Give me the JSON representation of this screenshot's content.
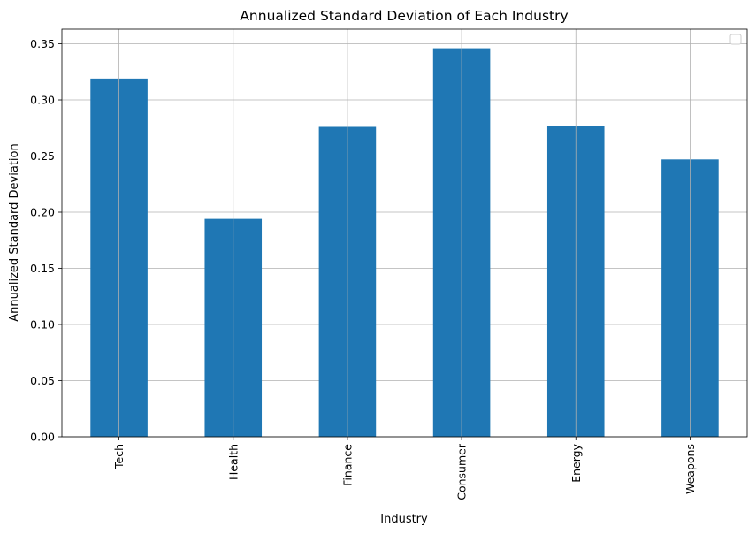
{
  "chart_data": {
    "type": "bar",
    "title": "Annualized Standard Deviation of Each Industry",
    "xlabel": "Industry",
    "ylabel": "Annualized Standard Deviation",
    "categories": [
      "Tech",
      "Health",
      "Finance",
      "Consumer",
      "Energy",
      "Weapons"
    ],
    "values": [
      0.319,
      0.194,
      0.276,
      0.346,
      0.277,
      0.247
    ],
    "ylim": [
      0,
      0.363
    ],
    "yticks": [
      0.0,
      0.05,
      0.1,
      0.15,
      0.2,
      0.25,
      0.3,
      0.35
    ],
    "ytick_labels": [
      "0.00",
      "0.05",
      "0.10",
      "0.15",
      "0.20",
      "0.25",
      "0.30",
      "0.35"
    ],
    "grid": true,
    "legend": {
      "placement": "top-right",
      "entries": []
    },
    "colors": {
      "bar": "#1f77b4",
      "grid": "#b0b0b0",
      "axis": "#000000"
    }
  }
}
